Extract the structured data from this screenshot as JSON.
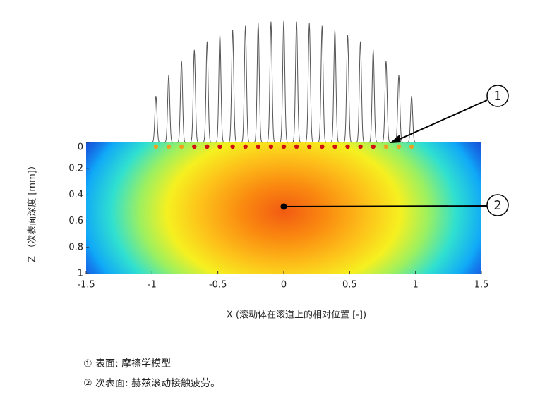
{
  "chart_data": {
    "type": "heatmap",
    "xlabel": "X (滚动体在滚道上的相对位置 [-])",
    "ylabel": "Z （次表面深度 [mm]）",
    "xlim": [
      -1.5,
      1.5
    ],
    "xticks": [
      -1.5,
      -1,
      -0.5,
      0,
      0.5,
      1,
      1.5
    ],
    "ylim": [
      0,
      1
    ],
    "yticks": [
      0,
      0.2,
      0.4,
      0.6,
      0.8,
      1
    ],
    "y_inverted": true,
    "annotations": [
      {
        "label": "1"
      },
      {
        "label": "2"
      }
    ],
    "notes": [
      "① 表面: 摩擦学模型",
      "② 次表面: 赫兹滚动接触疲劳。"
    ]
  }
}
